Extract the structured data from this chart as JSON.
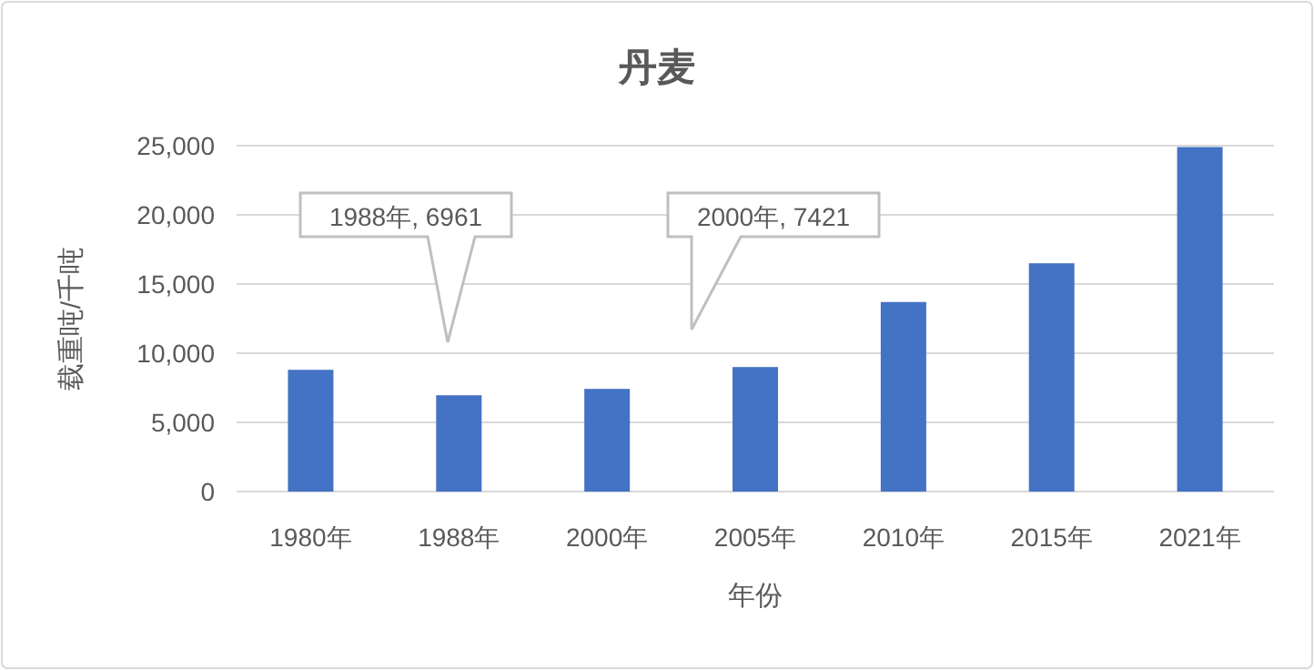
{
  "chart_data": {
    "type": "bar",
    "title": "丹麦",
    "xlabel": "年份",
    "ylabel": "载重吨/千吨",
    "categories": [
      "1980年",
      "1988年",
      "2000年",
      "2005年",
      "2010年",
      "2015年",
      "2021年"
    ],
    "values": [
      8800,
      6961,
      7421,
      9000,
      13700,
      16500,
      24900
    ],
    "color": "#4472c4",
    "ylim": [
      0,
      25000
    ],
    "yticks": [
      {
        "value": 0,
        "label": "0"
      },
      {
        "value": 5000,
        "label": "5,000"
      },
      {
        "value": 10000,
        "label": "10,000"
      },
      {
        "value": 15000,
        "label": "15,000"
      },
      {
        "value": 20000,
        "label": "20,000"
      },
      {
        "value": 25000,
        "label": "25,000"
      }
    ],
    "grid": "y",
    "annotations": [
      "1988年, 6961",
      "2000年, 7421"
    ]
  }
}
